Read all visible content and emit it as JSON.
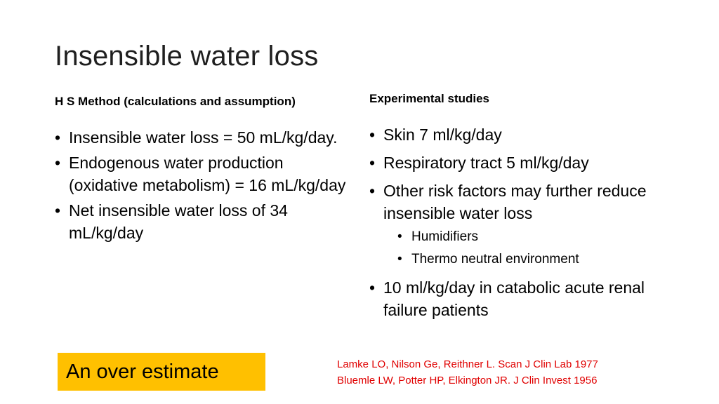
{
  "slide": {
    "title": "Insensible water loss",
    "left": {
      "heading": "H S Method (calculations and assumption)",
      "bullets": [
        "Insensible water loss = 50 mL/kg/day.",
        "Endogenous water production (oxidative metabolism) = 16 mL/kg/day",
        "Net insensible water loss of 34 mL/kg/day"
      ]
    },
    "right": {
      "heading": "Experimental studies",
      "bullets": [
        "Skin 7 ml/kg/day",
        "Respiratory tract 5 ml/kg/day",
        "Other risk factors may further reduce insensible water loss",
        "10 ml/kg/day in catabolic acute renal failure patients"
      ],
      "subbullets": [
        "Humidifiers",
        "Thermo neutral environment"
      ]
    },
    "callout": "An over estimate",
    "references": [
      "Lamke LO, Nilson Ge, Reithner L. Scan J Clin Lab 1977",
      "Bluemle LW, Potter HP, Elkington JR. J Clin Invest 1956"
    ],
    "colors": {
      "callout_bg": "#ffc000",
      "reference_text": "#e00000",
      "title_text": "#1f1f1f"
    }
  }
}
